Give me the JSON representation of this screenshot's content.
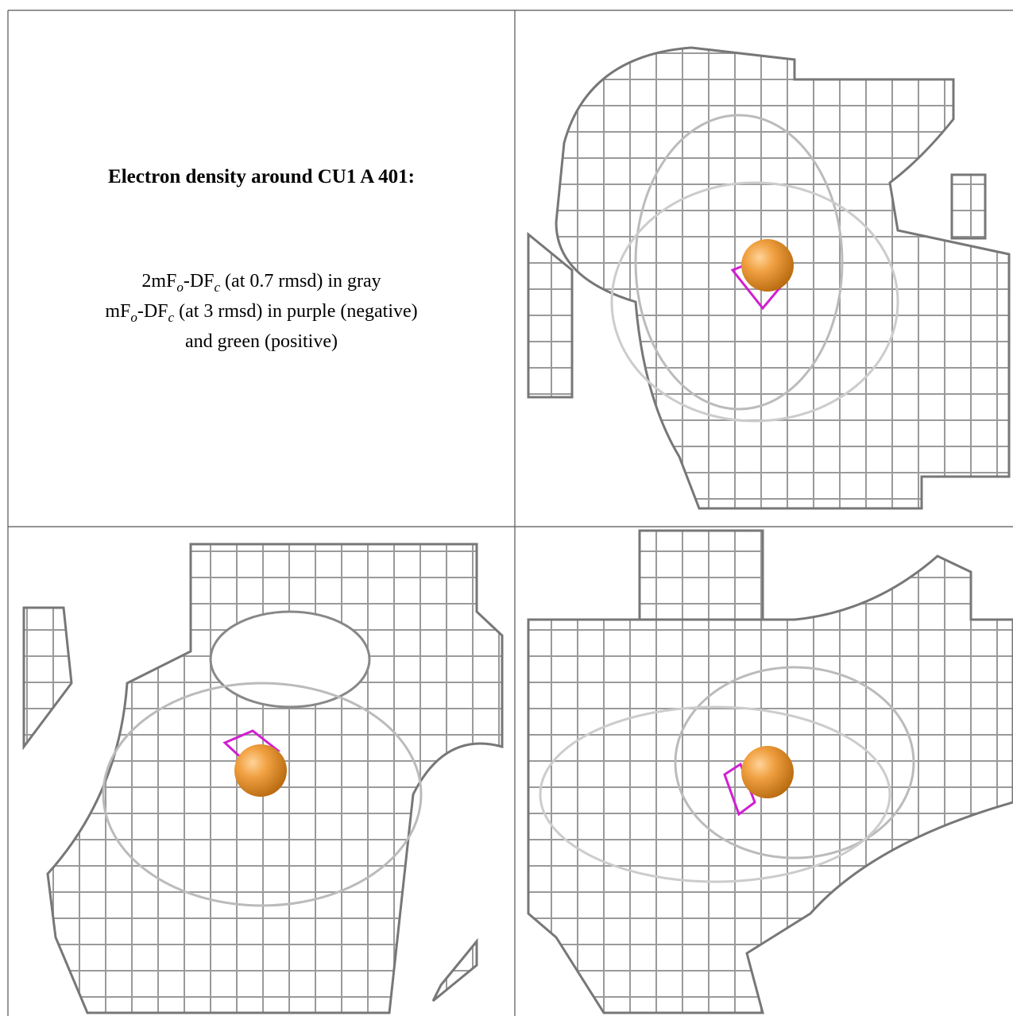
{
  "title": "Electron density around CU1 A 401:",
  "legend_lines": [
    [
      "2mF",
      "o",
      "-DF",
      "c",
      " (at 0.7 rmsd) in gray"
    ],
    [
      "mF",
      "o",
      "-DF",
      "c",
      " (at 3 rmsd) in purple (negative)"
    ],
    [
      "and green (positive)"
    ]
  ]
}
